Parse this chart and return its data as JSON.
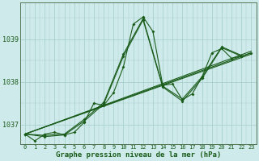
{
  "title": "Graphe pression niveau de la mer (hPa)",
  "bg_color": "#ceeaea",
  "grid_color": "#aad0d0",
  "line_color": "#1a5c1a",
  "xlim": [
    -0.5,
    23.5
  ],
  "ylim": [
    1036.55,
    1039.85
  ],
  "yticks": [
    1037,
    1038,
    1039
  ],
  "xlabel_color": "#1a5c1a",
  "series": [
    {
      "x": [
        0,
        1,
        2,
        3,
        4,
        5,
        6,
        7,
        8,
        9,
        10,
        11,
        12,
        13,
        14,
        15,
        16,
        17,
        18,
        19,
        20,
        21,
        22,
        23
      ],
      "y": [
        1036.78,
        1036.62,
        1036.78,
        1036.82,
        1036.76,
        1036.82,
        1037.05,
        1037.5,
        1037.45,
        1037.75,
        1038.35,
        1039.35,
        1039.52,
        1039.18,
        1037.92,
        1037.95,
        1037.58,
        1037.72,
        1038.12,
        1038.68,
        1038.78,
        1038.55,
        1038.6,
        1038.68
      ]
    },
    {
      "x": [
        0,
        2,
        4,
        6,
        8,
        10,
        12,
        14,
        16,
        18,
        20,
        22
      ],
      "y": [
        1036.78,
        1036.72,
        1036.76,
        1037.08,
        1037.48,
        1038.6,
        1039.45,
        1037.88,
        1037.55,
        1038.08,
        1038.8,
        1038.6
      ]
    },
    {
      "x": [
        0,
        2,
        4,
        6,
        8,
        10,
        12,
        14,
        16,
        18,
        20,
        22
      ],
      "y": [
        1036.78,
        1036.75,
        1036.78,
        1037.12,
        1037.52,
        1038.65,
        1039.48,
        1037.9,
        1037.6,
        1038.12,
        1038.82,
        1038.62
      ]
    },
    {
      "x": [
        0,
        23
      ],
      "y": [
        1036.78,
        1038.68
      ]
    },
    {
      "x": [
        0,
        23
      ],
      "y": [
        1036.78,
        1038.72
      ]
    },
    {
      "x": [
        0,
        23
      ],
      "y": [
        1036.78,
        1038.65
      ]
    }
  ]
}
